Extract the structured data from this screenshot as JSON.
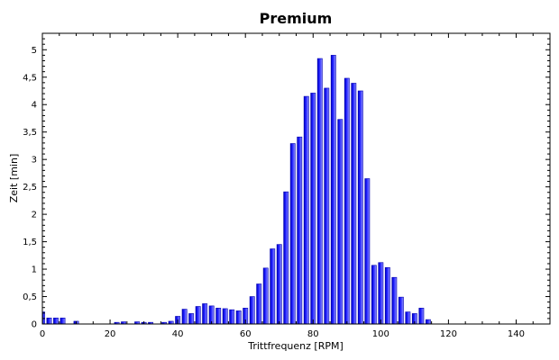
{
  "chart_data": {
    "type": "bar",
    "title": "Premium",
    "xlabel": "Trittfrequenz [RPM]",
    "ylabel": "Zeit [min]",
    "xlim": [
      0,
      150
    ],
    "ylim": [
      0,
      5.3
    ],
    "x_ticks": [
      "0",
      "20",
      "40",
      "60",
      "80",
      "100",
      "120",
      "140"
    ],
    "y_ticks": [
      "0",
      "0,5",
      "1",
      "1,5",
      "2",
      "2,5",
      "3",
      "3,5",
      "4",
      "4,5",
      "5"
    ],
    "grid": false,
    "bar_width": 1.4,
    "bar_color": "#1a1aff",
    "bar_edge_color": "#0000b0",
    "x": [
      0,
      2,
      4,
      6,
      10,
      22,
      24,
      28,
      30,
      32,
      36,
      38,
      40,
      42,
      44,
      46,
      48,
      50,
      52,
      54,
      56,
      58,
      60,
      62,
      64,
      66,
      68,
      70,
      72,
      74,
      76,
      78,
      80,
      82,
      84,
      86,
      88,
      90,
      92,
      94,
      96,
      98,
      100,
      102,
      104,
      106,
      108,
      110,
      112,
      114
    ],
    "values": [
      0.22,
      0.11,
      0.11,
      0.11,
      0.05,
      0.03,
      0.04,
      0.04,
      0.03,
      0.03,
      0.03,
      0.05,
      0.14,
      0.27,
      0.19,
      0.32,
      0.37,
      0.33,
      0.29,
      0.28,
      0.26,
      0.24,
      0.29,
      0.5,
      0.73,
      1.02,
      1.37,
      1.45,
      2.41,
      3.29,
      3.41,
      4.15,
      4.21,
      4.84,
      4.3,
      4.9,
      3.73,
      4.48,
      4.39,
      4.25,
      2.65,
      1.07,
      1.12,
      1.03,
      0.85,
      0.49,
      0.22,
      0.19,
      0.29,
      0.08
    ]
  }
}
